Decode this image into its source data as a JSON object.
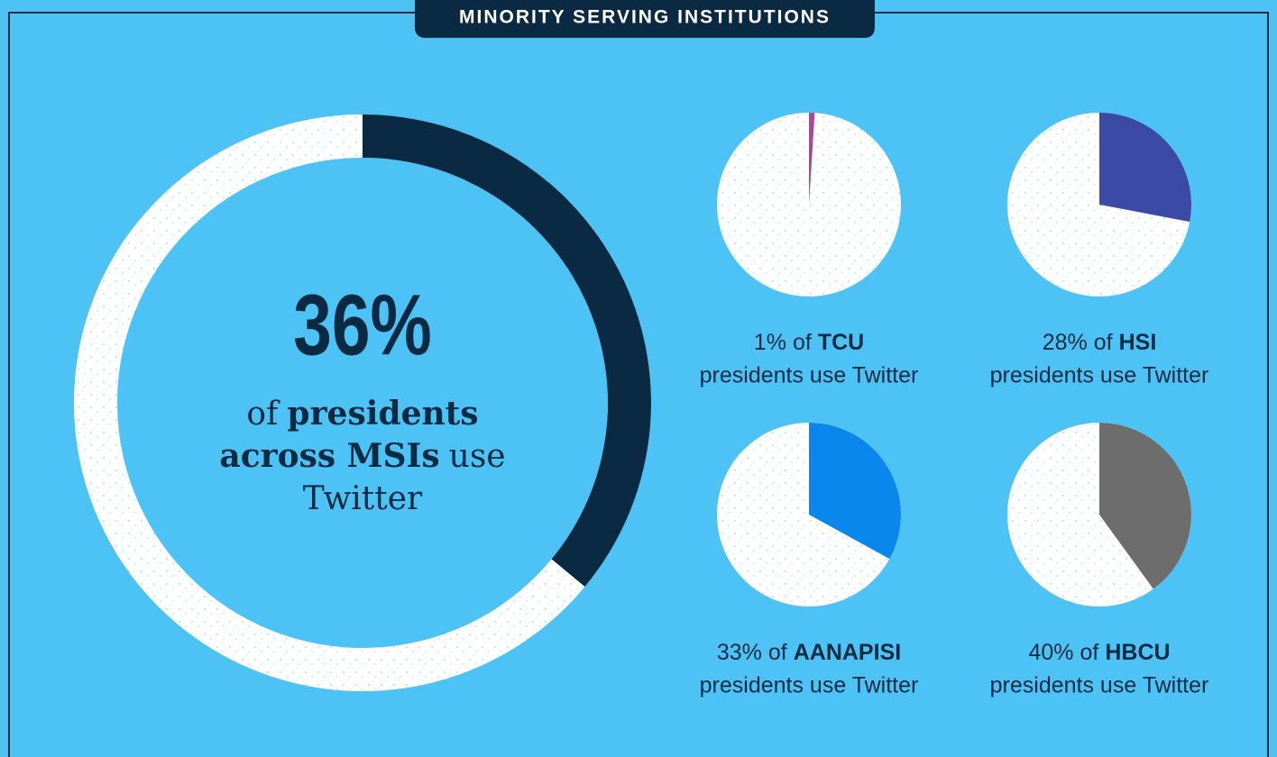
{
  "header": {
    "title": "MINORITY SERVING INSTITUTIONS"
  },
  "chart_data": [
    {
      "type": "donut",
      "values": [
        36
      ],
      "value_labels": [
        "36%"
      ],
      "color": "#0a2a44",
      "caption": [
        [
          {
            "text": "of"
          },
          {
            "text": "presidents",
            "bold": true
          }
        ],
        [
          {
            "text": "across MSIs",
            "bold": true
          },
          {
            "text": "use"
          }
        ],
        [
          {
            "text": "Twitter"
          }
        ]
      ]
    },
    {
      "type": "pie",
      "values": [
        1
      ],
      "value_labels": [
        "1%"
      ],
      "color": "#b0449a",
      "text_before": "of",
      "group": "TCU",
      "text_after": "presidents use Twitter"
    },
    {
      "type": "pie",
      "values": [
        28
      ],
      "value_labels": [
        "28%"
      ],
      "color": "#3a4aa5",
      "text_before": "of",
      "group": "HSI",
      "text_after": "presidents use Twitter"
    },
    {
      "type": "pie",
      "values": [
        33
      ],
      "value_labels": [
        "33%"
      ],
      "color": "#0a87ec",
      "text_before": "of",
      "group": "AANAPISI",
      "text_after": "presidents use Twitter"
    },
    {
      "type": "pie",
      "values": [
        40
      ],
      "value_labels": [
        "40%"
      ],
      "color": "#6d6d6d",
      "text_before": "of",
      "group": "HBCU",
      "text_after": "presidents use Twitter"
    }
  ]
}
